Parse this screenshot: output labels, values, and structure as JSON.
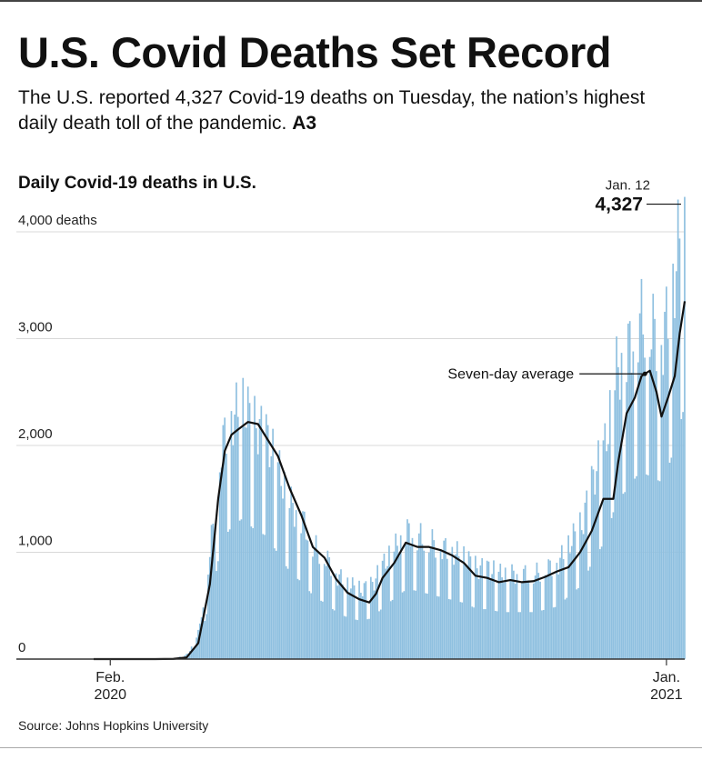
{
  "headline": "U.S. Covid Deaths Set Record",
  "dek": {
    "text": "The U.S. reported 4,327 Covid-19 deaths on Tuesday, the nation’s highest daily death toll of the pandemic.",
    "ref": "A3"
  },
  "source": "Source: Johns Hopkins University",
  "colors": {
    "bars": "#8fc0e0",
    "line": "#111111",
    "grid": "#d8d8d8",
    "axis": "#333333"
  },
  "chart_data": {
    "type": "bar",
    "title": "Daily Covid-19 deaths in U.S.",
    "unit_label": "4,000 deaths",
    "x_start": "2020-01-22",
    "x_end": "2021-01-12",
    "ylim": [
      0,
      4000
    ],
    "y_ticks": [
      0,
      1000,
      2000,
      3000,
      4000
    ],
    "y_tick_labels": [
      "0",
      "1,000",
      "2,000",
      "3,000",
      "4,000 deaths"
    ],
    "x_ticks": [
      {
        "date": "2020-02-01",
        "label": [
          "Feb.",
          "2020"
        ]
      },
      {
        "date": "2021-01-01",
        "label": [
          "Jan.",
          "2021"
        ]
      }
    ],
    "grid": true,
    "series": [
      {
        "name": "Daily deaths",
        "kind": "bar",
        "anchors": [
          [
            "2020-01-22",
            0
          ],
          [
            "2020-02-28",
            0
          ],
          [
            "2020-03-05",
            2
          ],
          [
            "2020-03-12",
            10
          ],
          [
            "2020-03-19",
            50
          ],
          [
            "2020-03-26",
            300
          ],
          [
            "2020-04-01",
            1000
          ],
          [
            "2020-04-05",
            1500
          ],
          [
            "2020-04-08",
            2000
          ],
          [
            "2020-04-14",
            2250
          ],
          [
            "2020-04-21",
            2400
          ],
          [
            "2020-04-28",
            2200
          ],
          [
            "2020-05-05",
            2100
          ],
          [
            "2020-05-12",
            1800
          ],
          [
            "2020-05-20",
            1450
          ],
          [
            "2020-05-27",
            1300
          ],
          [
            "2020-06-03",
            1050
          ],
          [
            "2020-06-10",
            950
          ],
          [
            "2020-06-17",
            780
          ],
          [
            "2020-06-24",
            700
          ],
          [
            "2020-07-01",
            650
          ],
          [
            "2020-07-08",
            700
          ],
          [
            "2020-07-15",
            900
          ],
          [
            "2020-07-22",
            1050
          ],
          [
            "2020-07-29",
            1200
          ],
          [
            "2020-08-05",
            1150
          ],
          [
            "2020-08-12",
            1100
          ],
          [
            "2020-08-19",
            1050
          ],
          [
            "2020-08-26",
            1000
          ],
          [
            "2020-09-02",
            950
          ],
          [
            "2020-09-09",
            850
          ],
          [
            "2020-09-16",
            850
          ],
          [
            "2020-09-23",
            800
          ],
          [
            "2020-09-30",
            800
          ],
          [
            "2020-10-07",
            800
          ],
          [
            "2020-10-14",
            800
          ],
          [
            "2020-10-21",
            850
          ],
          [
            "2020-10-28",
            900
          ],
          [
            "2020-11-04",
            1100
          ],
          [
            "2020-11-11",
            1250
          ],
          [
            "2020-11-18",
            1700
          ],
          [
            "2020-11-25",
            2000
          ],
          [
            "2020-12-02",
            2700
          ],
          [
            "2020-12-09",
            2900
          ],
          [
            "2020-12-16",
            3200
          ],
          [
            "2020-12-23",
            3100
          ],
          [
            "2020-12-30",
            3000
          ],
          [
            "2021-01-06",
            3600
          ],
          [
            "2021-01-12",
            4327
          ]
        ],
        "weekly_dip_pct": 45
      },
      {
        "name": "Seven-day average",
        "kind": "line",
        "points": [
          [
            "2020-01-22",
            0
          ],
          [
            "2020-02-28",
            0
          ],
          [
            "2020-03-10",
            2
          ],
          [
            "2020-03-18",
            15
          ],
          [
            "2020-03-25",
            150
          ],
          [
            "2020-04-01",
            700
          ],
          [
            "2020-04-06",
            1500
          ],
          [
            "2020-04-10",
            1950
          ],
          [
            "2020-04-14",
            2100
          ],
          [
            "2020-04-18",
            2150
          ],
          [
            "2020-04-24",
            2220
          ],
          [
            "2020-04-30",
            2200
          ],
          [
            "2020-05-06",
            2050
          ],
          [
            "2020-05-12",
            1900
          ],
          [
            "2020-05-19",
            1600
          ],
          [
            "2020-05-26",
            1350
          ],
          [
            "2020-06-02",
            1050
          ],
          [
            "2020-06-09",
            950
          ],
          [
            "2020-06-16",
            750
          ],
          [
            "2020-06-23",
            620
          ],
          [
            "2020-06-30",
            560
          ],
          [
            "2020-07-06",
            530
          ],
          [
            "2020-07-10",
            610
          ],
          [
            "2020-07-14",
            760
          ],
          [
            "2020-07-21",
            900
          ],
          [
            "2020-07-28",
            1090
          ],
          [
            "2020-08-04",
            1050
          ],
          [
            "2020-08-11",
            1050
          ],
          [
            "2020-08-18",
            1020
          ],
          [
            "2020-08-25",
            970
          ],
          [
            "2020-09-01",
            900
          ],
          [
            "2020-09-08",
            780
          ],
          [
            "2020-09-15",
            760
          ],
          [
            "2020-09-22",
            720
          ],
          [
            "2020-09-29",
            740
          ],
          [
            "2020-10-06",
            720
          ],
          [
            "2020-10-13",
            730
          ],
          [
            "2020-10-20",
            770
          ],
          [
            "2020-10-27",
            820
          ],
          [
            "2020-11-03",
            860
          ],
          [
            "2020-11-10",
            1000
          ],
          [
            "2020-11-17",
            1200
          ],
          [
            "2020-11-24",
            1500
          ],
          [
            "2020-11-30",
            1500
          ],
          [
            "2020-12-03",
            1850
          ],
          [
            "2020-12-08",
            2300
          ],
          [
            "2020-12-13",
            2450
          ],
          [
            "2020-12-17",
            2650
          ],
          [
            "2020-12-22",
            2700
          ],
          [
            "2020-12-26",
            2500
          ],
          [
            "2020-12-29",
            2270
          ],
          [
            "2021-01-02",
            2450
          ],
          [
            "2021-01-06",
            2650
          ],
          [
            "2021-01-09",
            3050
          ],
          [
            "2021-01-12",
            3350
          ]
        ]
      }
    ],
    "annotations": [
      {
        "target": "peak",
        "date": "2021-01-12",
        "label": "Jan. 12",
        "value_label": "4,327"
      },
      {
        "target": "average",
        "label": "Seven-day average",
        "date": "2020-12-19"
      }
    ]
  }
}
